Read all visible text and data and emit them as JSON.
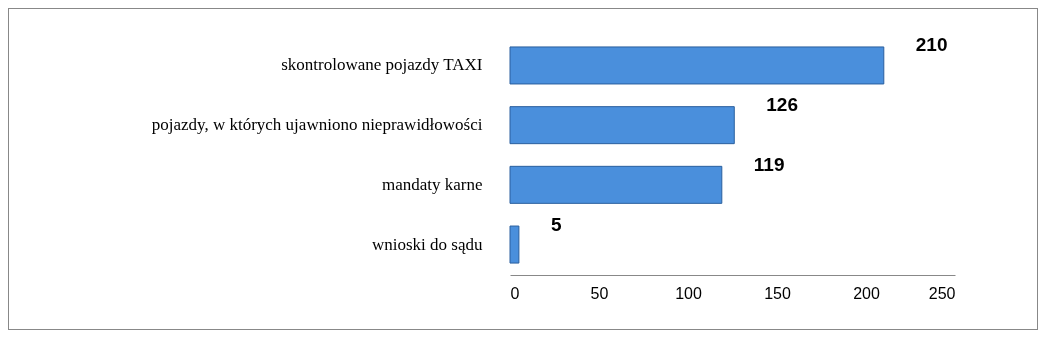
{
  "chart_data": {
    "type": "bar",
    "orientation": "horizontal",
    "categories": [
      "skontrolowane pojazdy TAXI",
      "pojazdy, w których ujawniono nieprawidłowości",
      "mandaty karne",
      "wnioski do sądu"
    ],
    "values": [
      210,
      126,
      119,
      5
    ],
    "color": "#4a8fdc",
    "xlim": [
      0,
      250
    ],
    "xticks": [
      0,
      50,
      100,
      150,
      200,
      250
    ],
    "data_labels": true,
    "grid": false
  }
}
